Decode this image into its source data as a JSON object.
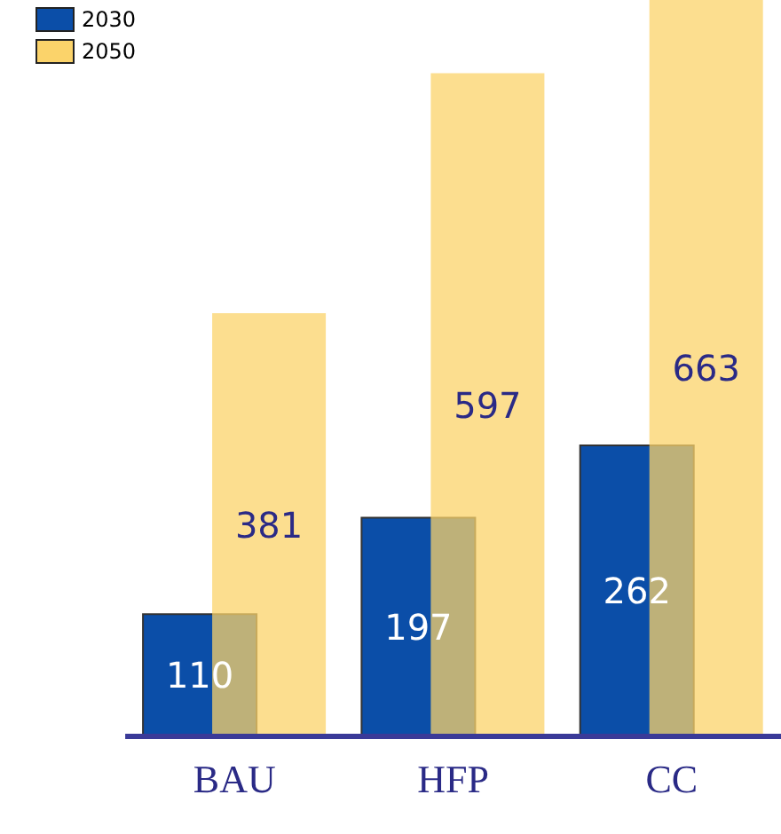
{
  "chart_data": {
    "type": "bar",
    "categories": [
      "BAU",
      "HFP",
      "CC"
    ],
    "series": [
      {
        "name": "2030",
        "color": "#0b4ea8",
        "values": [
          110,
          197,
          262
        ]
      },
      {
        "name": "2050",
        "color": "#fbd36a",
        "values": [
          381,
          597,
          663
        ]
      }
    ],
    "data_labels": true,
    "legend": "top left"
  }
}
